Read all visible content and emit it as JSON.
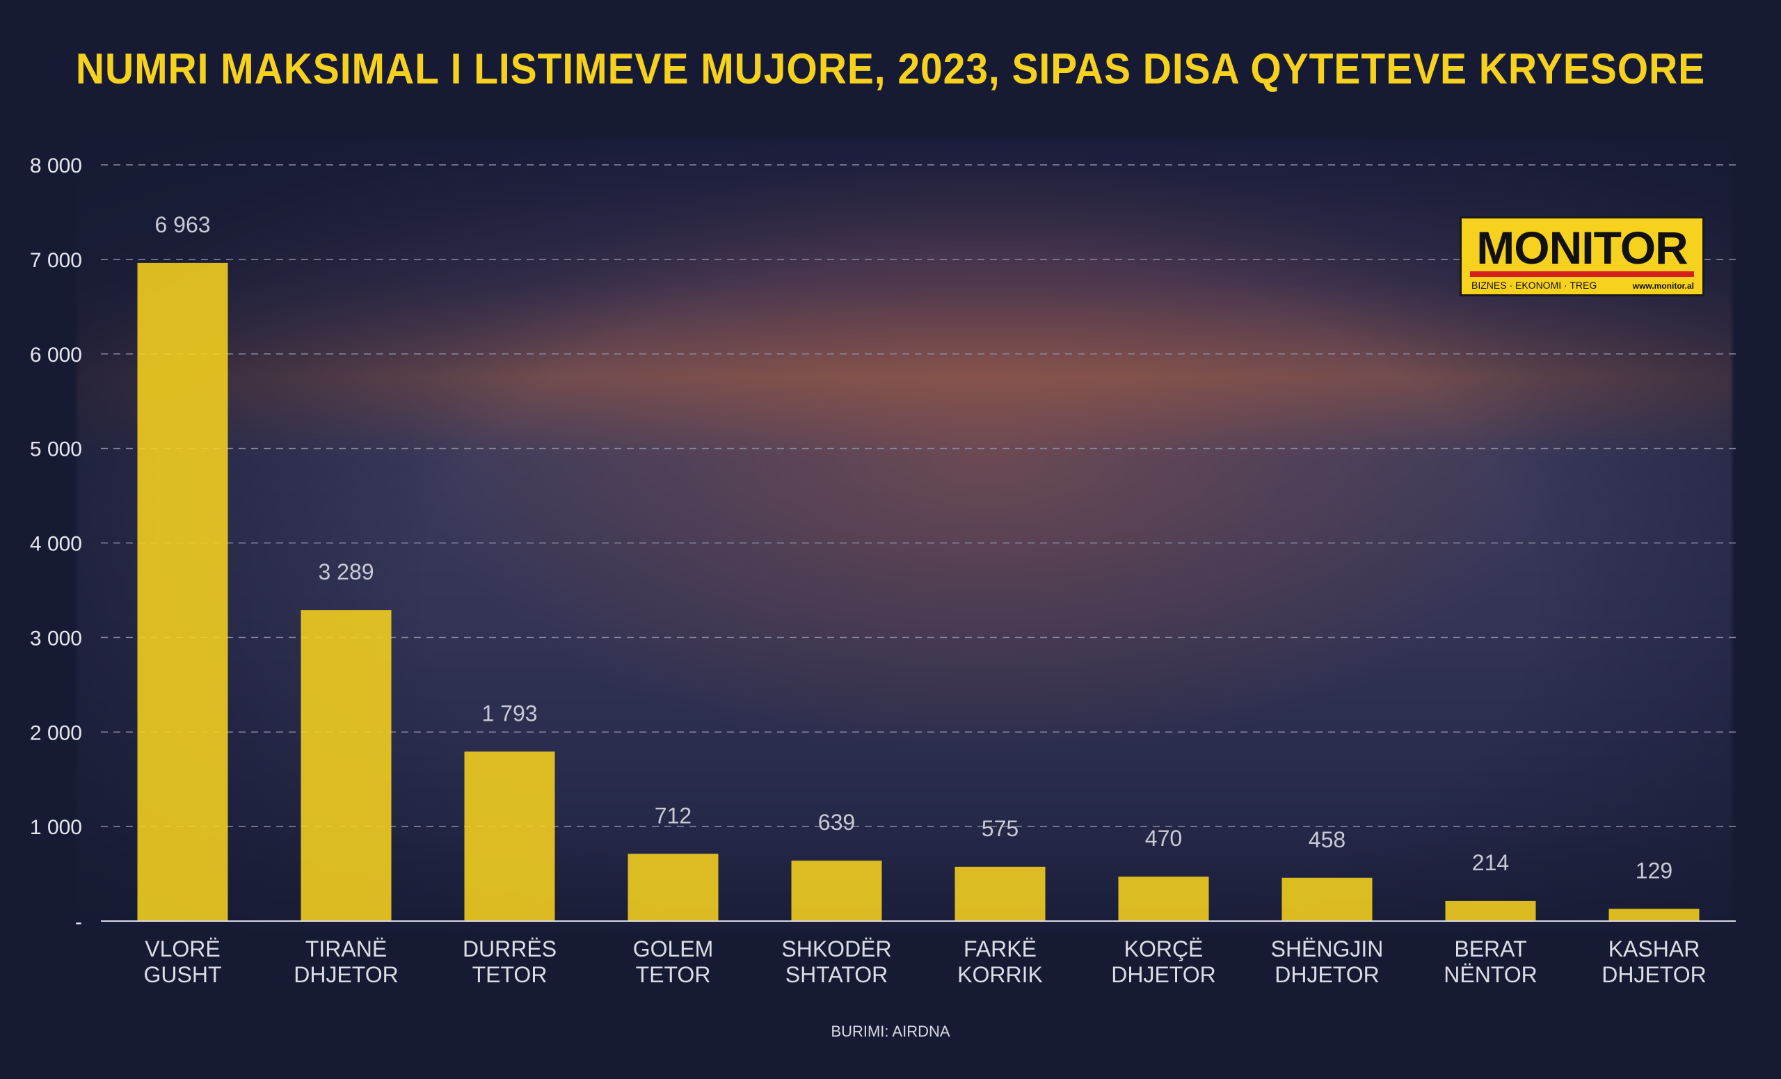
{
  "chart_data": {
    "type": "bar",
    "title": "NUMRI MAKSIMAL I LISTIMEVE MUJORE, 2023, SIPAS DISA QYTETEVE KRYESORE",
    "categories": [
      [
        "VLORË",
        "GUSHT"
      ],
      [
        "TIRANË",
        "DHJETOR"
      ],
      [
        "DURRËS",
        "TETOR"
      ],
      [
        "GOLEM",
        "TETOR"
      ],
      [
        "SHKODËR",
        "SHTATOR"
      ],
      [
        "FARKË",
        "KORRIK"
      ],
      [
        "KORÇË",
        "DHJETOR"
      ],
      [
        "SHËNGJIN",
        "DHJETOR"
      ],
      [
        "BERAT",
        "NËNTOR"
      ],
      [
        "KASHAR",
        "DHJETOR"
      ]
    ],
    "values": [
      6963,
      3289,
      1793,
      712,
      639,
      575,
      470,
      458,
      214,
      129
    ],
    "value_labels": [
      "6 963",
      "3 289",
      "1 793",
      "712",
      "639",
      "575",
      "470",
      "458",
      "214",
      "129"
    ],
    "ylim": [
      0,
      8000
    ],
    "yticks": [
      0,
      1000,
      2000,
      3000,
      4000,
      5000,
      6000,
      7000,
      8000
    ],
    "ytick_labels": [
      "-",
      "1 000",
      "2 000",
      "3 000",
      "4 000",
      "5 000",
      "6 000",
      "7 000",
      "8 000"
    ],
    "grid": true,
    "xlabel": "",
    "ylabel": "",
    "bar_color": "#f6d11e",
    "source": "BURIMI: AIRDNA"
  },
  "logo": {
    "wordmark": "MONITOR",
    "tagline": "BIZNES · EKONOMI · TREG",
    "url": "www.monitor.al"
  },
  "colors": {
    "background": "#161a33",
    "accent": "#f6d11e",
    "logo_bar": "#d62020"
  }
}
